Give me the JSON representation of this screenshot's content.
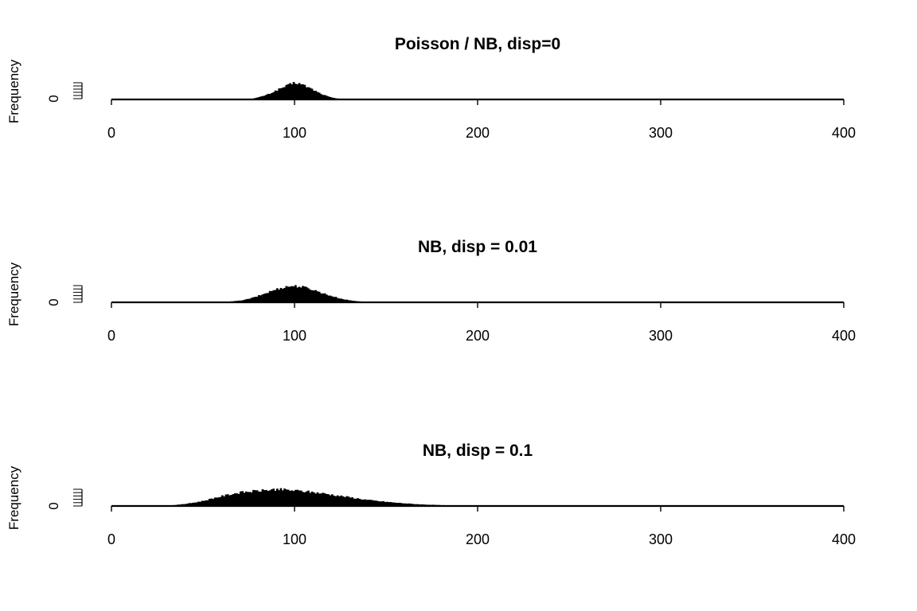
{
  "chart_data": [
    {
      "type": "bar",
      "title": "Poisson / NB, disp=0",
      "xlabel": "",
      "ylabel": "Frequency",
      "xlim": [
        0,
        400
      ],
      "x_ticks": [
        0,
        100,
        200,
        300,
        400
      ],
      "y_tick_label": "0",
      "bin_width": 1,
      "mean": 100,
      "dispersion": 0,
      "x": [
        77,
        80,
        82,
        84,
        86,
        88,
        90,
        92,
        94,
        96,
        98,
        100,
        102,
        104,
        106,
        108,
        110,
        112,
        114,
        116,
        118,
        120,
        122,
        124,
        126
      ],
      "values": [
        0.05,
        0.12,
        0.18,
        0.25,
        0.33,
        0.43,
        0.54,
        0.64,
        0.74,
        0.83,
        0.92,
        1.0,
        0.97,
        0.9,
        0.8,
        0.7,
        0.59,
        0.47,
        0.36,
        0.27,
        0.19,
        0.12,
        0.08,
        0.05,
        0.02
      ]
    },
    {
      "type": "bar",
      "title": "NB, disp = 0.01",
      "xlabel": "",
      "ylabel": "Frequency",
      "xlim": [
        0,
        400
      ],
      "x_ticks": [
        0,
        100,
        200,
        300,
        400
      ],
      "y_tick_label": "0",
      "bin_width": 1,
      "mean": 100,
      "dispersion": 0.01,
      "x": [
        65,
        70,
        74,
        78,
        82,
        86,
        90,
        94,
        98,
        102,
        106,
        110,
        114,
        118,
        122,
        126,
        130,
        134,
        138,
        142
      ],
      "values": [
        0.05,
        0.1,
        0.18,
        0.3,
        0.45,
        0.62,
        0.78,
        0.9,
        0.98,
        0.96,
        0.88,
        0.76,
        0.6,
        0.45,
        0.32,
        0.2,
        0.12,
        0.07,
        0.04,
        0.02
      ]
    },
    {
      "type": "bar",
      "title": "NB, disp = 0.1",
      "xlabel": "",
      "ylabel": "Frequency",
      "xlim": [
        0,
        400
      ],
      "x_ticks": [
        0,
        100,
        200,
        300,
        400
      ],
      "y_tick_label": "0",
      "bin_width": 1,
      "mean": 100,
      "dispersion": 0.1,
      "x": [
        30,
        35,
        40,
        45,
        50,
        55,
        60,
        65,
        70,
        75,
        80,
        85,
        90,
        95,
        100,
        105,
        110,
        115,
        120,
        125,
        130,
        135,
        140,
        145,
        150,
        155,
        160,
        165,
        170,
        175,
        180,
        185,
        190,
        195,
        200
      ],
      "values": [
        0.03,
        0.06,
        0.12,
        0.2,
        0.3,
        0.45,
        0.58,
        0.7,
        0.8,
        0.86,
        0.9,
        0.95,
        1.0,
        0.96,
        0.92,
        0.88,
        0.82,
        0.76,
        0.68,
        0.6,
        0.52,
        0.44,
        0.36,
        0.3,
        0.25,
        0.2,
        0.16,
        0.12,
        0.09,
        0.07,
        0.05,
        0.04,
        0.03,
        0.02,
        0.01
      ]
    }
  ]
}
